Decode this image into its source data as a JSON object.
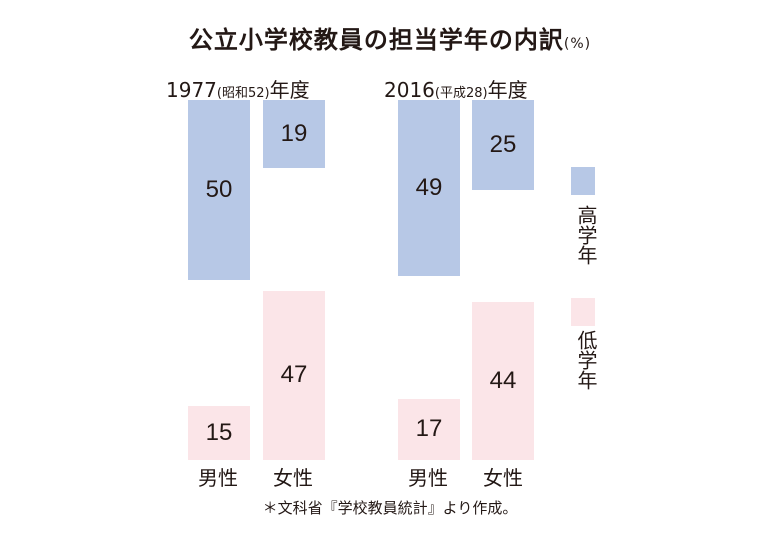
{
  "title": "公立小学校教員の担当学年の内訳",
  "unit": "(%)",
  "colors": {
    "upper": "#b7c8e6",
    "lower": "#fbe5e8"
  },
  "legend": {
    "upper": "高学年",
    "lower": "低学年"
  },
  "footnote": "＊文科省『学校教員統計』より作成。",
  "chart_data": {
    "type": "bar",
    "title": "公立小学校教員の担当学年の内訳",
    "unit": "%",
    "groups": [
      {
        "label": "1977",
        "paren": "(昭和52)",
        "suffix": "年度",
        "categories": [
          "男性",
          "女性"
        ],
        "series": [
          {
            "name": "高学年",
            "values": [
              50,
              19
            ]
          },
          {
            "name": "低学年",
            "values": [
              15,
              47
            ]
          }
        ]
      },
      {
        "label": "2016",
        "paren": "(平成28)",
        "suffix": "年度",
        "categories": [
          "男性",
          "女性"
        ],
        "series": [
          {
            "name": "高学年",
            "values": [
              49,
              25
            ]
          },
          {
            "name": "低学年",
            "values": [
              17,
              44
            ]
          }
        ]
      }
    ]
  }
}
